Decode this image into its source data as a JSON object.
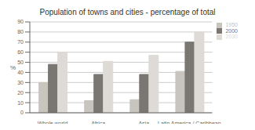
{
  "chart_data": {
    "type": "bar",
    "title": "Population of towns and cities - percentage of total",
    "categories": [
      "Whole world",
      "Africa",
      "Asia",
      "Latin America / Caribbean"
    ],
    "series": [
      {
        "name": "1950",
        "color": "#c8c4be",
        "values": [
          30,
          12,
          13,
          41
        ]
      },
      {
        "name": "2000",
        "color": "#7a7672",
        "values": [
          48,
          38,
          38,
          70
        ]
      },
      {
        "name": "2030",
        "color": "#dedad6",
        "values": [
          60,
          51,
          57,
          80
        ]
      }
    ],
    "ylabel": "%",
    "ylim": [
      0,
      90
    ],
    "yticks": [
      0,
      10,
      20,
      30,
      40,
      50,
      60,
      70,
      80,
      90
    ],
    "grid": true,
    "legend": "upper right"
  }
}
